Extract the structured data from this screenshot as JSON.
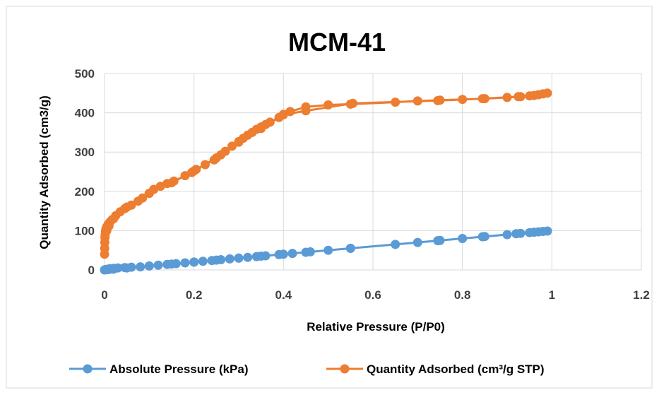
{
  "chart_data": {
    "type": "scatter",
    "title": "MCM-41",
    "xlabel": "Relative Pressure (P/P0)",
    "ylabel": "Quantity Adsorbed (cm3/g)",
    "xlim": [
      0,
      1.2
    ],
    "ylim": [
      0,
      500
    ],
    "x_ticks": [
      "0",
      "0.2",
      "0.4",
      "0.6",
      "0.8",
      "1",
      "1.2"
    ],
    "y_ticks": [
      "0",
      "100",
      "200",
      "300",
      "400",
      "500"
    ],
    "grid": true,
    "legend_position": "bottom",
    "series": [
      {
        "name": "Absolute Pressure (kPa)",
        "color": "#5b9bd5",
        "points": [
          [
            0.0,
            0
          ],
          [
            0.001,
            0.5
          ],
          [
            0.003,
            1
          ],
          [
            0.005,
            1.5
          ],
          [
            0.008,
            2
          ],
          [
            0.012,
            3
          ],
          [
            0.02,
            4
          ],
          [
            0.03,
            5
          ],
          [
            0.045,
            6
          ],
          [
            0.06,
            7
          ],
          [
            0.08,
            8
          ],
          [
            0.1,
            10
          ],
          [
            0.12,
            12
          ],
          [
            0.14,
            14
          ],
          [
            0.16,
            16
          ],
          [
            0.18,
            18
          ],
          [
            0.2,
            20
          ],
          [
            0.22,
            22
          ],
          [
            0.24,
            24
          ],
          [
            0.26,
            26
          ],
          [
            0.28,
            28
          ],
          [
            0.3,
            30
          ],
          [
            0.32,
            32
          ],
          [
            0.34,
            34
          ],
          [
            0.36,
            36
          ],
          [
            0.39,
            39
          ],
          [
            0.42,
            42
          ],
          [
            0.46,
            46
          ],
          [
            0.5,
            50
          ],
          [
            0.55,
            55
          ],
          [
            0.65,
            65
          ],
          [
            0.7,
            70
          ],
          [
            0.75,
            75
          ],
          [
            0.8,
            80
          ],
          [
            0.85,
            85
          ],
          [
            0.9,
            90
          ],
          [
            0.93,
            93
          ],
          [
            0.96,
            96
          ],
          [
            0.99,
            99
          ],
          [
            0.98,
            98
          ],
          [
            0.97,
            97
          ],
          [
            0.95,
            95
          ],
          [
            0.92,
            92
          ],
          [
            0.845,
            84.5
          ],
          [
            0.745,
            74.5
          ],
          [
            0.55,
            55
          ],
          [
            0.45,
            45
          ],
          [
            0.4,
            40
          ],
          [
            0.35,
            35
          ],
          [
            0.3,
            30
          ],
          [
            0.25,
            25
          ],
          [
            0.2,
            20
          ],
          [
            0.15,
            15
          ],
          [
            0.1,
            10
          ],
          [
            0.05,
            5
          ],
          [
            0.02,
            2
          ],
          [
            0.01,
            1
          ],
          [
            0.005,
            0.5
          ]
        ]
      },
      {
        "name": "Quantity Adsorbed (cm³/g STP)",
        "color": "#ed7d31",
        "points": [
          [
            0.0,
            40
          ],
          [
            0.0003,
            55
          ],
          [
            0.0006,
            70
          ],
          [
            0.001,
            82
          ],
          [
            0.0015,
            90
          ],
          [
            0.002,
            98
          ],
          [
            0.003,
            104
          ],
          [
            0.005,
            110
          ],
          [
            0.008,
            116
          ],
          [
            0.012,
            122
          ],
          [
            0.017,
            128
          ],
          [
            0.025,
            138
          ],
          [
            0.035,
            148
          ],
          [
            0.045,
            156
          ],
          [
            0.06,
            165
          ],
          [
            0.075,
            175
          ],
          [
            0.085,
            183
          ],
          [
            0.1,
            195
          ],
          [
            0.11,
            205
          ],
          [
            0.125,
            213
          ],
          [
            0.14,
            220
          ],
          [
            0.155,
            226
          ],
          [
            0.18,
            240
          ],
          [
            0.195,
            248
          ],
          [
            0.205,
            256
          ],
          [
            0.225,
            268
          ],
          [
            0.245,
            280
          ],
          [
            0.26,
            293
          ],
          [
            0.27,
            302
          ],
          [
            0.285,
            315
          ],
          [
            0.3,
            327
          ],
          [
            0.31,
            335
          ],
          [
            0.32,
            343
          ],
          [
            0.33,
            350
          ],
          [
            0.34,
            358
          ],
          [
            0.35,
            364
          ],
          [
            0.36,
            370
          ],
          [
            0.37,
            376
          ],
          [
            0.39,
            388
          ],
          [
            0.4,
            396
          ],
          [
            0.415,
            403
          ],
          [
            0.45,
            415
          ],
          [
            0.5,
            420
          ],
          [
            0.55,
            422
          ],
          [
            0.65,
            427
          ],
          [
            0.7,
            430
          ],
          [
            0.75,
            432
          ],
          [
            0.8,
            434
          ],
          [
            0.85,
            436
          ],
          [
            0.9,
            439
          ],
          [
            0.93,
            441
          ],
          [
            0.96,
            444
          ],
          [
            0.99,
            450
          ],
          [
            0.98,
            448
          ],
          [
            0.97,
            446
          ],
          [
            0.95,
            443
          ],
          [
            0.925,
            441
          ],
          [
            0.845,
            436
          ],
          [
            0.745,
            431
          ],
          [
            0.555,
            424
          ],
          [
            0.45,
            405
          ],
          [
            0.4,
            395
          ],
          [
            0.35,
            360
          ],
          [
            0.3,
            325
          ],
          [
            0.25,
            285
          ],
          [
            0.2,
            252
          ],
          [
            0.15,
            222
          ],
          [
            0.1,
            195
          ],
          [
            0.05,
            160
          ],
          [
            0.02,
            130
          ],
          [
            0.01,
            112
          ],
          [
            0.005,
            100
          ]
        ]
      }
    ]
  }
}
